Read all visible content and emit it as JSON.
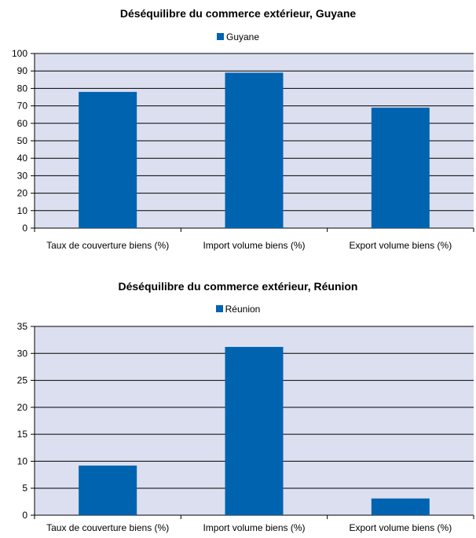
{
  "chart_data": [
    {
      "type": "bar",
      "title": "Déséquilibre du commerce extérieur, Guyane",
      "categories": [
        "Taux de couverture biens (%)",
        "Import volume biens (%)",
        "Export volume biens (%)"
      ],
      "series": [
        {
          "name": "Guyane",
          "values": [
            78,
            89,
            69
          ]
        }
      ],
      "ylim": [
        0,
        100
      ],
      "yticks": [
        0,
        10,
        20,
        30,
        40,
        50,
        60,
        70,
        80,
        90,
        100
      ],
      "grid": true,
      "legend_position": "top-center",
      "colors": {
        "bar": "#0063b0",
        "plot_bg": "#dcdff0",
        "grid": "#000000"
      }
    },
    {
      "type": "bar",
      "title": "Déséquilibre du commerce extérieur, Réunion",
      "categories": [
        "Taux de couverture biens (%)",
        "Import volume biens (%)",
        "Export volume biens (%)"
      ],
      "series": [
        {
          "name": "Réunion",
          "values": [
            9.2,
            31.2,
            3.1
          ]
        }
      ],
      "ylim": [
        0,
        35
      ],
      "yticks": [
        0,
        5,
        10,
        15,
        20,
        25,
        30,
        35
      ],
      "grid": true,
      "legend_position": "top-center",
      "colors": {
        "bar": "#0063b0",
        "plot_bg": "#dcdff0",
        "grid": "#000000"
      }
    }
  ]
}
